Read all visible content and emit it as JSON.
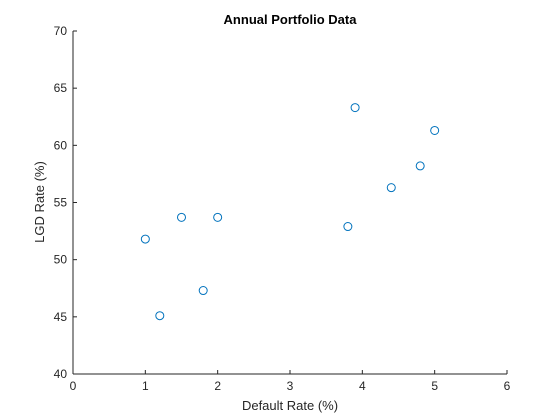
{
  "chart_data": {
    "type": "scatter",
    "title": "Annual Portfolio Data",
    "xlabel": "Default Rate (%)",
    "ylabel": "LGD Rate (%)",
    "xlim": [
      0,
      6
    ],
    "ylim": [
      40,
      70
    ],
    "xticks": [
      0,
      1,
      2,
      3,
      4,
      5,
      6
    ],
    "yticks": [
      40,
      45,
      50,
      55,
      60,
      65,
      70
    ],
    "grid": false,
    "marker": "open-circle",
    "colors": {
      "marker": "#0072BD",
      "axis": "#262626"
    },
    "series": [
      {
        "x": [
          1.0,
          1.2,
          1.5,
          1.8,
          2.0,
          3.8,
          3.9,
          4.4,
          4.8,
          5.0
        ],
        "y": [
          51.8,
          45.1,
          53.7,
          47.3,
          53.7,
          52.9,
          63.3,
          56.3,
          58.2,
          61.3
        ]
      }
    ]
  }
}
